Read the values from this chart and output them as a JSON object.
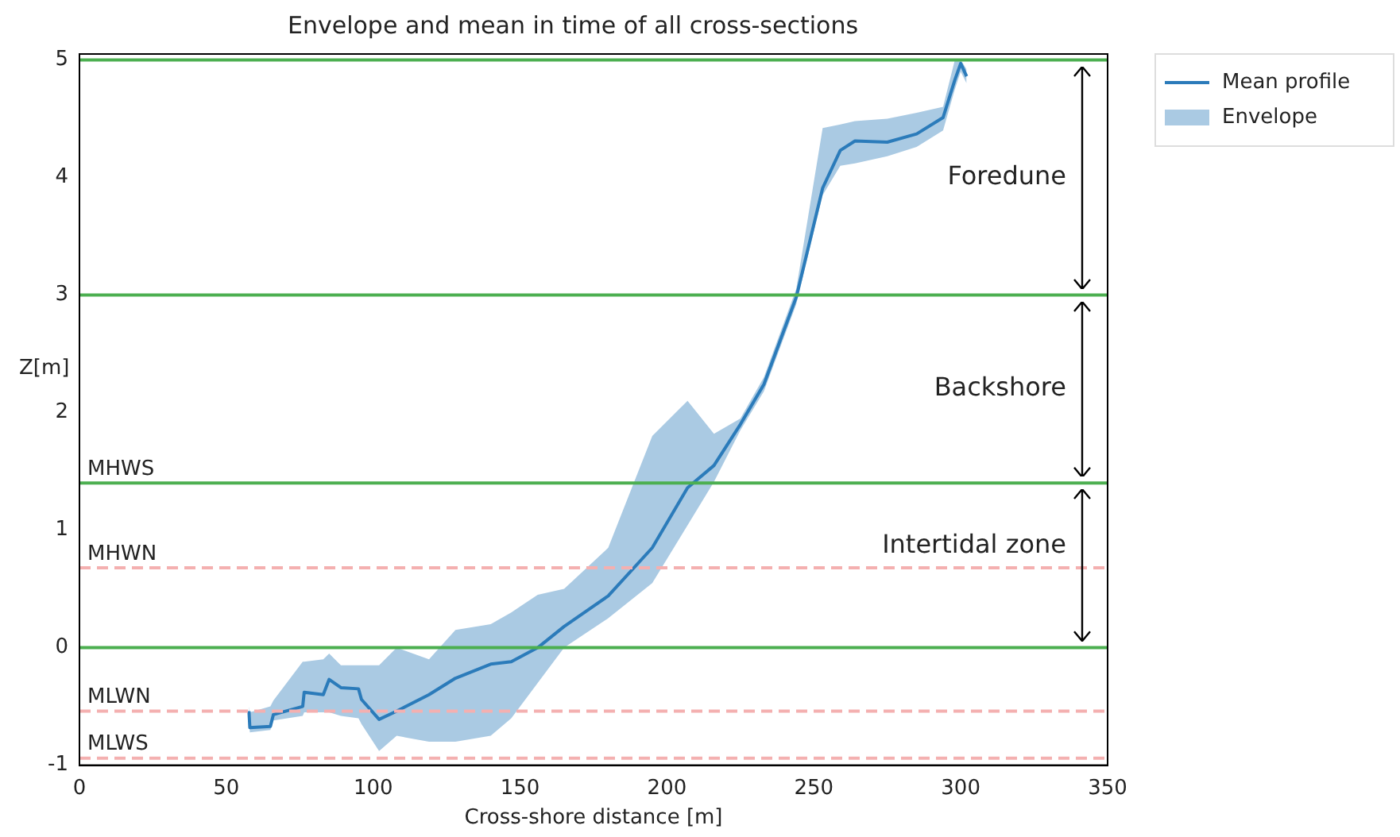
{
  "chart_data": {
    "type": "line",
    "title": "Envelope and mean in time of all cross-sections",
    "xlabel": "Cross-shore distance [m]",
    "ylabel": "Z[m]",
    "x": [
      57.7,
      58,
      65,
      66,
      76,
      76.5,
      83,
      85,
      89,
      95,
      96,
      102,
      108,
      119,
      128,
      140,
      147,
      156,
      165,
      180,
      195,
      207,
      216,
      225,
      233,
      244,
      253,
      259,
      264,
      275,
      285,
      294,
      298,
      300,
      302
    ],
    "series": [
      {
        "name": "Mean profile",
        "type": "line",
        "color": "#2b7bba",
        "values": [
          -0.54,
          -0.68,
          -0.67,
          -0.57,
          -0.5,
          -0.38,
          -0.4,
          -0.27,
          -0.34,
          -0.35,
          -0.44,
          -0.61,
          -0.54,
          -0.4,
          -0.26,
          -0.14,
          -0.12,
          0.0,
          0.18,
          0.44,
          0.85,
          1.36,
          1.55,
          1.9,
          2.24,
          2.98,
          3.91,
          4.23,
          4.31,
          4.3,
          4.37,
          4.51,
          4.83,
          4.97,
          4.86
        ],
        "lower": [
          -0.6,
          -0.72,
          -0.7,
          -0.62,
          -0.58,
          -0.55,
          -0.55,
          -0.55,
          -0.58,
          -0.6,
          -0.65,
          -0.88,
          -0.75,
          -0.8,
          -0.8,
          -0.75,
          -0.6,
          -0.3,
          0.0,
          0.25,
          0.55,
          1.04,
          1.41,
          1.85,
          2.18,
          2.92,
          3.85,
          4.1,
          4.12,
          4.18,
          4.26,
          4.4,
          4.75,
          4.9,
          4.8
        ],
        "upper": [
          -0.5,
          -0.55,
          -0.5,
          -0.45,
          -0.12,
          -0.12,
          -0.1,
          -0.05,
          -0.15,
          -0.15,
          -0.15,
          -0.15,
          0.0,
          -0.1,
          0.15,
          0.2,
          0.3,
          0.45,
          0.5,
          0.85,
          1.8,
          2.1,
          1.82,
          1.95,
          2.3,
          3.05,
          4.42,
          4.45,
          4.48,
          4.5,
          4.55,
          4.6,
          5.0,
          5.0,
          4.92
        ]
      }
    ],
    "xlim": [
      0,
      350
    ],
    "xticks": [
      0,
      50,
      100,
      150,
      200,
      250,
      300,
      350
    ],
    "ylim": [
      -1,
      5.05
    ],
    "yticks": [
      -1,
      0,
      1,
      2,
      3,
      4,
      5
    ],
    "ref_lines": [
      {
        "axis": "y",
        "value": 5,
        "color": "#4caf50",
        "line_style": "solid"
      },
      {
        "axis": "y",
        "value": 3,
        "color": "#4caf50",
        "line_style": "solid"
      },
      {
        "axis": "y",
        "value": 1.4,
        "label": "MHWS",
        "color": "#4caf50",
        "line_style": "solid"
      },
      {
        "axis": "y",
        "value": 0,
        "color": "#4caf50",
        "line_style": "solid"
      },
      {
        "axis": "y",
        "value": 0.68,
        "label": "MHWN",
        "color": "#f4b0b0",
        "line_style": "dashed"
      },
      {
        "axis": "y",
        "value": -0.54,
        "label": "MLWN",
        "color": "#f4b0b0",
        "line_style": "dashed"
      },
      {
        "axis": "y",
        "value": -0.94,
        "label": "MLWS",
        "color": "#f4b0b0",
        "line_style": "dashed"
      }
    ],
    "annotations": [
      "Foredune",
      "Backshore",
      "Intertidal zone",
      "Envelope"
    ],
    "grid": false,
    "legend": "top right",
    "marker": "none",
    "line_style": "solid"
  }
}
